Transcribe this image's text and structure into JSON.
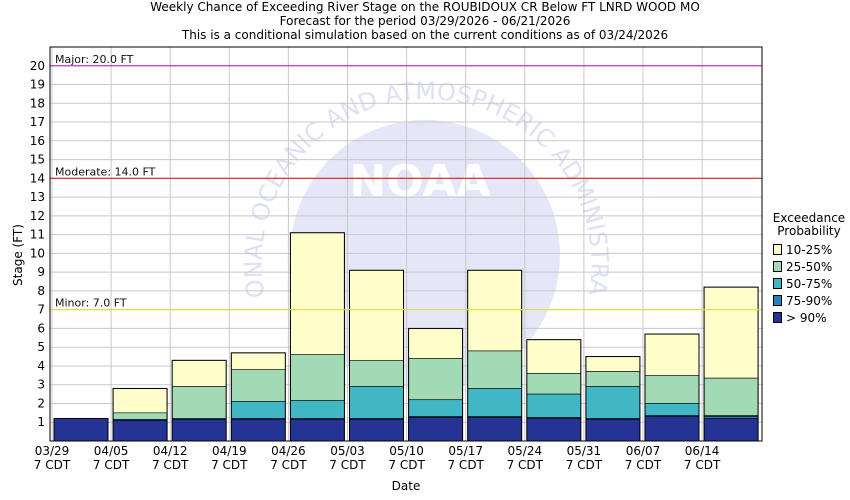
{
  "chart_data": {
    "type": "bar",
    "title_lines": [
      "Weekly Chance of Exceeding River Stage on the ROUBIDOUX CR Below FT LNRD WOOD MO",
      "Forecast for the period 03/29/2026 - 06/21/2026",
      "This is a conditional simulation based on the current conditions as of 03/24/2026"
    ],
    "xlabel": "Date",
    "ylabel": "Stage (FT)",
    "ylim": [
      0,
      21
    ],
    "y_ticks": [
      1,
      2,
      3,
      4,
      5,
      6,
      7,
      8,
      9,
      10,
      11,
      12,
      13,
      14,
      15,
      16,
      17,
      18,
      19,
      20
    ],
    "x_ticks": [
      {
        "date": "03/29",
        "tz": "7 CDT"
      },
      {
        "date": "04/05",
        "tz": "7 CDT"
      },
      {
        "date": "04/12",
        "tz": "7 CDT"
      },
      {
        "date": "04/19",
        "tz": "7 CDT"
      },
      {
        "date": "04/26",
        "tz": "7 CDT"
      },
      {
        "date": "05/03",
        "tz": "7 CDT"
      },
      {
        "date": "05/10",
        "tz": "7 CDT"
      },
      {
        "date": "05/17",
        "tz": "7 CDT"
      },
      {
        "date": "05/24",
        "tz": "7 CDT"
      },
      {
        "date": "05/31",
        "tz": "7 CDT"
      },
      {
        "date": "06/07",
        "tz": "7 CDT"
      },
      {
        "date": "06/14",
        "tz": "7 CDT"
      }
    ],
    "grid": true,
    "thresholds": [
      {
        "label": "Major: 20.0 FT",
        "value": 20.0,
        "color": "#cc33cc"
      },
      {
        "label": "Moderate: 14.0 FT",
        "value": 14.0,
        "color": "#dd2222"
      },
      {
        "label": "Minor: 7.0 FT",
        "value": 7.0,
        "color": "#e8e033"
      }
    ],
    "legend": {
      "position": "right",
      "title": [
        "Exceedance",
        "Probability"
      ],
      "items": [
        {
          "label": "10-25%",
          "color": "#ffffcc"
        },
        {
          "label": "25-50%",
          "color": "#a1dab4"
        },
        {
          "label": "50-75%",
          "color": "#41b6c4"
        },
        {
          "label": "75-90%",
          "color": "#2c7fb8"
        },
        {
          "label": "> 90%",
          "color": "#253494"
        }
      ]
    },
    "bars": [
      {
        "week": "03/29",
        "levels": [
          1.2,
          1.2,
          1.2,
          1.2,
          1.2
        ]
      },
      {
        "week": "04/05",
        "levels": [
          2.8,
          1.5,
          1.15,
          1.15,
          1.1
        ]
      },
      {
        "week": "04/12",
        "levels": [
          4.3,
          2.9,
          1.2,
          1.15,
          1.15
        ]
      },
      {
        "week": "04/19",
        "levels": [
          4.7,
          3.8,
          2.1,
          1.2,
          1.15
        ]
      },
      {
        "week": "04/26",
        "levels": [
          11.1,
          4.6,
          2.15,
          1.2,
          1.15
        ]
      },
      {
        "week": "05/03",
        "levels": [
          9.1,
          4.3,
          2.9,
          1.2,
          1.15
        ]
      },
      {
        "week": "05/10",
        "levels": [
          6.0,
          4.4,
          2.2,
          1.3,
          1.25
        ]
      },
      {
        "week": "05/17",
        "levels": [
          9.1,
          4.8,
          2.8,
          1.3,
          1.25
        ]
      },
      {
        "week": "05/24",
        "levels": [
          5.4,
          3.6,
          2.5,
          1.25,
          1.2
        ]
      },
      {
        "week": "05/31",
        "levels": [
          4.5,
          3.7,
          2.9,
          1.2,
          1.15
        ]
      },
      {
        "week": "06/07",
        "levels": [
          5.7,
          3.5,
          2.0,
          1.35,
          1.3
        ]
      },
      {
        "week": "06/14",
        "levels": [
          8.2,
          3.35,
          1.35,
          1.3,
          1.2
        ]
      }
    ]
  },
  "watermark": {
    "arc_text": "NATIONAL OCEANIC AND ATMOSPHERIC ADMINISTRATION",
    "logo_text": "NOAA"
  }
}
